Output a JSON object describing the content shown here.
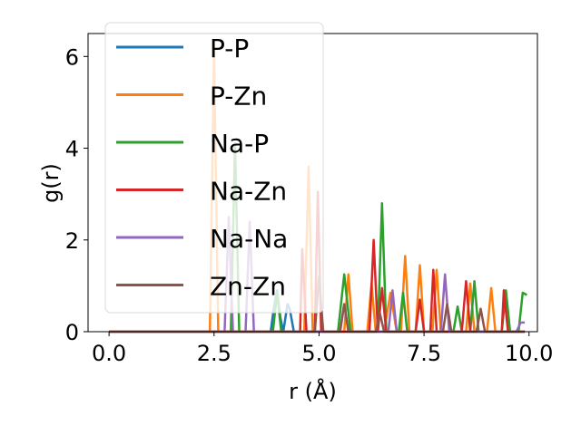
{
  "chart_data": {
    "type": "line",
    "xlabel": "r (Å)",
    "ylabel": "g(r)",
    "xlim": [
      -0.5,
      10.2
    ],
    "ylim": [
      0,
      6.5
    ],
    "xticks": [
      "0.0",
      "2.5",
      "5.0",
      "7.5",
      "10.0"
    ],
    "yticks": [
      "0",
      "2",
      "4",
      "6"
    ],
    "grid": false,
    "legend_position": "upper-left",
    "series": [
      {
        "name": "P-P",
        "color": "#1f77b4",
        "x": [
          0,
          3.85,
          3.92,
          4.0,
          4.08,
          4.15,
          4.25,
          4.3,
          4.4,
          9.9
        ],
        "y": [
          0,
          0,
          0.5,
          0.9,
          0.3,
          0,
          0.6,
          0.5,
          0,
          0
        ]
      },
      {
        "name": "P-Zn",
        "color": "#ff7f0e",
        "x": [
          0,
          2.4,
          2.5,
          2.6,
          4.65,
          4.75,
          4.85,
          5.6,
          5.7,
          5.8,
          6.15,
          6.25,
          6.35,
          6.55,
          6.7,
          6.85,
          6.95,
          7.05,
          7.15,
          7.3,
          7.4,
          7.5,
          7.7,
          7.8,
          7.9,
          8.5,
          8.6,
          8.7,
          9.0,
          9.1,
          9.2,
          9.9
        ],
        "y": [
          0,
          0,
          6.1,
          0,
          0,
          3.6,
          0,
          0,
          1.25,
          0,
          0,
          1.05,
          0,
          0,
          0.85,
          0,
          0,
          1.65,
          0,
          0,
          1.45,
          0,
          0,
          1.35,
          0,
          0,
          1.05,
          0,
          0,
          0.95,
          0,
          0
        ]
      },
      {
        "name": "Na-P",
        "color": "#2ca02c",
        "x": [
          0,
          2.9,
          3.0,
          3.1,
          3.9,
          4.0,
          4.1,
          5.45,
          5.6,
          5.75,
          6.4,
          6.5,
          6.6,
          6.9,
          7.0,
          7.1,
          8.2,
          8.3,
          8.4,
          8.6,
          8.7,
          8.8,
          9.35,
          9.45,
          9.55,
          9.75,
          9.85,
          9.95
        ],
        "y": [
          0,
          0,
          4.1,
          0,
          0,
          0.85,
          0,
          0,
          1.25,
          0,
          0,
          2.8,
          0,
          0,
          0.85,
          0,
          0,
          0.55,
          0,
          0,
          1.1,
          0,
          0,
          0.9,
          0,
          0,
          0.85,
          0.8
        ]
      },
      {
        "name": "Na-Zn",
        "color": "#d62728",
        "x": [
          0,
          4.55,
          4.6,
          4.7,
          4.9,
          4.97,
          5.05,
          5.15,
          6.2,
          6.3,
          6.4,
          6.5,
          6.6,
          6.7,
          7.3,
          7.4,
          7.5,
          7.65,
          7.72,
          7.8,
          8.4,
          8.5,
          8.6,
          9.35,
          9.4,
          9.5,
          9.9
        ],
        "y": [
          0,
          0,
          1.8,
          0,
          0,
          3.05,
          0,
          0,
          0,
          2.0,
          0,
          0.95,
          0,
          0,
          0,
          0.7,
          0,
          0,
          1.35,
          0,
          0,
          1.1,
          0,
          0,
          0.9,
          0,
          0
        ]
      },
      {
        "name": "Na-Na",
        "color": "#9467bd",
        "x": [
          0,
          2.75,
          2.85,
          2.95,
          3.25,
          3.35,
          3.45,
          5.5,
          5.6,
          5.7,
          6.65,
          6.75,
          6.85,
          7.9,
          8.0,
          8.1,
          9.7,
          9.8,
          9.9
        ],
        "y": [
          0,
          0,
          2.5,
          0,
          0,
          2.4,
          0,
          0,
          0.6,
          0,
          0,
          0.9,
          0,
          0,
          1.25,
          0,
          0,
          0.2,
          0.2
        ]
      },
      {
        "name": "Zn-Zn",
        "color": "#8c564b",
        "x": [
          0,
          4.9,
          5.0,
          5.1,
          5.5,
          5.6,
          5.7,
          6.35,
          6.45,
          6.55,
          7.95,
          8.05,
          8.15,
          8.75,
          8.85,
          8.95,
          9.9
        ],
        "y": [
          0,
          0,
          1.2,
          0,
          0,
          0.6,
          0,
          0,
          0.4,
          0,
          0,
          0.6,
          0,
          0,
          0.5,
          0,
          0
        ]
      }
    ]
  }
}
